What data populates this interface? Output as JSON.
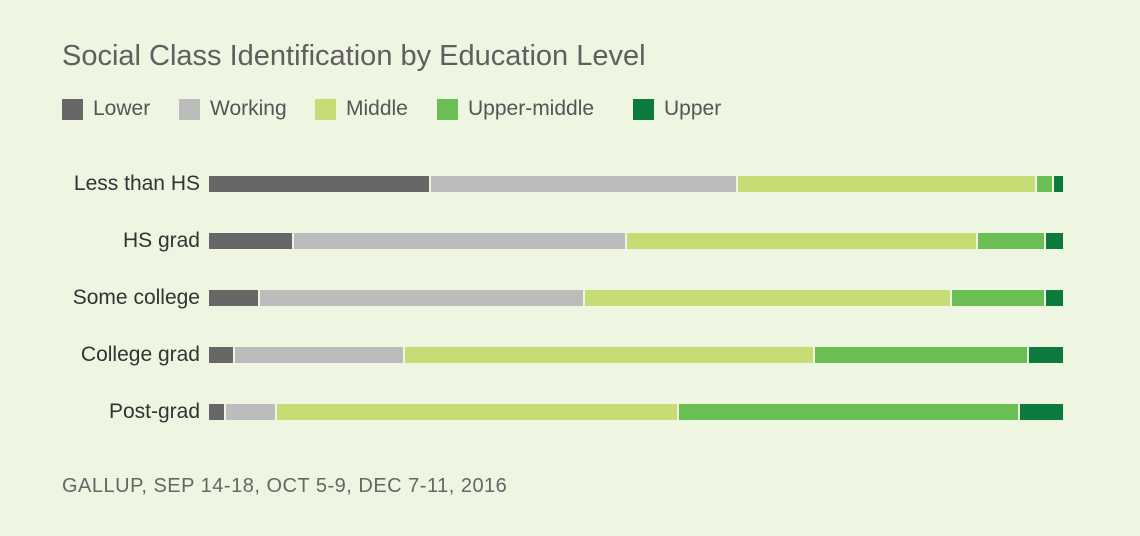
{
  "chart_data": {
    "type": "bar",
    "orientation": "horizontal",
    "stacked": true,
    "normalized": true,
    "title": "Social Class Identification by Education Level",
    "categories": [
      "Less than HS",
      "HS grad",
      "Some college",
      "College grad",
      "Post-grad"
    ],
    "series": [
      {
        "name": "Lower",
        "color": "#676767",
        "values": [
          26,
          10,
          6,
          3,
          2
        ]
      },
      {
        "name": "Working",
        "color": "#bcbcbc",
        "values": [
          36,
          39,
          38,
          20,
          6
        ]
      },
      {
        "name": "Middle",
        "color": "#c5dd74",
        "values": [
          35,
          41,
          43,
          48,
          47
        ]
      },
      {
        "name": "Upper-middle",
        "color": "#69bf53",
        "values": [
          2,
          8,
          11,
          25,
          40
        ]
      },
      {
        "name": "Upper",
        "color": "#0e7b3e",
        "values": [
          1,
          2,
          2,
          4,
          5
        ]
      }
    ],
    "grid": false,
    "legend": "top-left",
    "source": "GALLUP, SEP 14-18, OCT 5-9, DEC 7-11, 2016"
  }
}
